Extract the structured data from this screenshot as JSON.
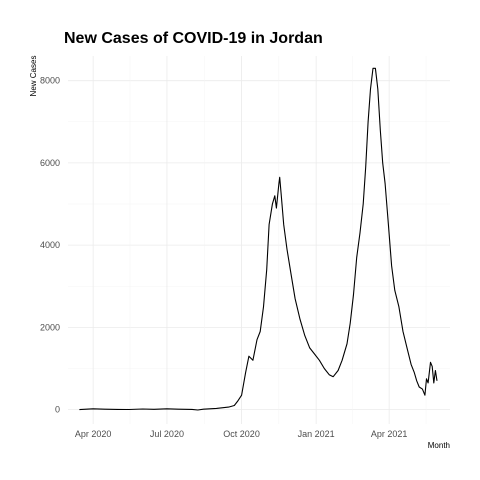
{
  "chart_data": {
    "type": "line",
    "title": "New Cases of COVID-19 in Jordan",
    "xlabel": "Month",
    "ylabel": "New Cases",
    "grid": true,
    "legend": "none",
    "xlim": [
      "2020-03-01",
      "2021-06-15"
    ],
    "ylim": [
      -350,
      8600
    ],
    "x_ticks": [
      {
        "value": "2020-04-01",
        "label": "Apr 2020"
      },
      {
        "value": "2020-07-01",
        "label": "Jul 2020"
      },
      {
        "value": "2020-10-01",
        "label": "Oct 2020"
      },
      {
        "value": "2021-01-01",
        "label": "Jan 2021"
      },
      {
        "value": "2021-04-01",
        "label": "Apr 2021"
      }
    ],
    "y_ticks": [
      0,
      2000,
      4000,
      6000,
      8000
    ],
    "series": [
      {
        "color": "#000000",
        "points": [
          [
            "2020-03-15",
            0
          ],
          [
            "2020-04-01",
            20
          ],
          [
            "2020-04-15",
            10
          ],
          [
            "2020-05-01",
            5
          ],
          [
            "2020-05-15",
            3
          ],
          [
            "2020-06-01",
            15
          ],
          [
            "2020-06-15",
            8
          ],
          [
            "2020-07-01",
            20
          ],
          [
            "2020-07-15",
            10
          ],
          [
            "2020-08-01",
            5
          ],
          [
            "2020-08-08",
            -10
          ],
          [
            "2020-08-15",
            10
          ],
          [
            "2020-08-31",
            30
          ],
          [
            "2020-09-15",
            60
          ],
          [
            "2020-09-22",
            100
          ],
          [
            "2020-09-26",
            200
          ],
          [
            "2020-10-01",
            350
          ],
          [
            "2020-10-06",
            900
          ],
          [
            "2020-10-10",
            1300
          ],
          [
            "2020-10-15",
            1200
          ],
          [
            "2020-10-20",
            1700
          ],
          [
            "2020-10-24",
            1900
          ],
          [
            "2020-10-28",
            2500
          ],
          [
            "2020-11-01",
            3400
          ],
          [
            "2020-11-04",
            4500
          ],
          [
            "2020-11-08",
            5000
          ],
          [
            "2020-11-11",
            5200
          ],
          [
            "2020-11-13",
            4900
          ],
          [
            "2020-11-16",
            5500
          ],
          [
            "2020-11-17",
            5650
          ],
          [
            "2020-11-19",
            5200
          ],
          [
            "2020-11-22",
            4500
          ],
          [
            "2020-11-26",
            3900
          ],
          [
            "2020-12-01",
            3300
          ],
          [
            "2020-12-06",
            2700
          ],
          [
            "2020-12-12",
            2200
          ],
          [
            "2020-12-18",
            1800
          ],
          [
            "2020-12-24",
            1500
          ],
          [
            "2020-12-30",
            1350
          ],
          [
            "2021-01-05",
            1200
          ],
          [
            "2021-01-11",
            1000
          ],
          [
            "2021-01-17",
            850
          ],
          [
            "2021-01-22",
            800
          ],
          [
            "2021-01-28",
            950
          ],
          [
            "2021-02-02",
            1200
          ],
          [
            "2021-02-08",
            1600
          ],
          [
            "2021-02-12",
            2100
          ],
          [
            "2021-02-16",
            2800
          ],
          [
            "2021-02-20",
            3700
          ],
          [
            "2021-02-24",
            4300
          ],
          [
            "2021-02-28",
            5000
          ],
          [
            "2021-03-03",
            5900
          ],
          [
            "2021-03-06",
            7000
          ],
          [
            "2021-03-09",
            7800
          ],
          [
            "2021-03-12",
            8300
          ],
          [
            "2021-03-15",
            8300
          ],
          [
            "2021-03-18",
            7800
          ],
          [
            "2021-03-21",
            6800
          ],
          [
            "2021-03-24",
            6000
          ],
          [
            "2021-03-27",
            5500
          ],
          [
            "2021-03-31",
            4500
          ],
          [
            "2021-04-04",
            3500
          ],
          [
            "2021-04-08",
            2900
          ],
          [
            "2021-04-13",
            2500
          ],
          [
            "2021-04-18",
            1900
          ],
          [
            "2021-04-23",
            1500
          ],
          [
            "2021-04-28",
            1100
          ],
          [
            "2021-05-02",
            900
          ],
          [
            "2021-05-05",
            700
          ],
          [
            "2021-05-08",
            550
          ],
          [
            "2021-05-12",
            500
          ],
          [
            "2021-05-15",
            350
          ],
          [
            "2021-05-17",
            750
          ],
          [
            "2021-05-19",
            650
          ],
          [
            "2021-05-22",
            1150
          ],
          [
            "2021-05-24",
            1050
          ],
          [
            "2021-05-26",
            650
          ],
          [
            "2021-05-28",
            950
          ],
          [
            "2021-05-30",
            700
          ]
        ]
      }
    ]
  }
}
